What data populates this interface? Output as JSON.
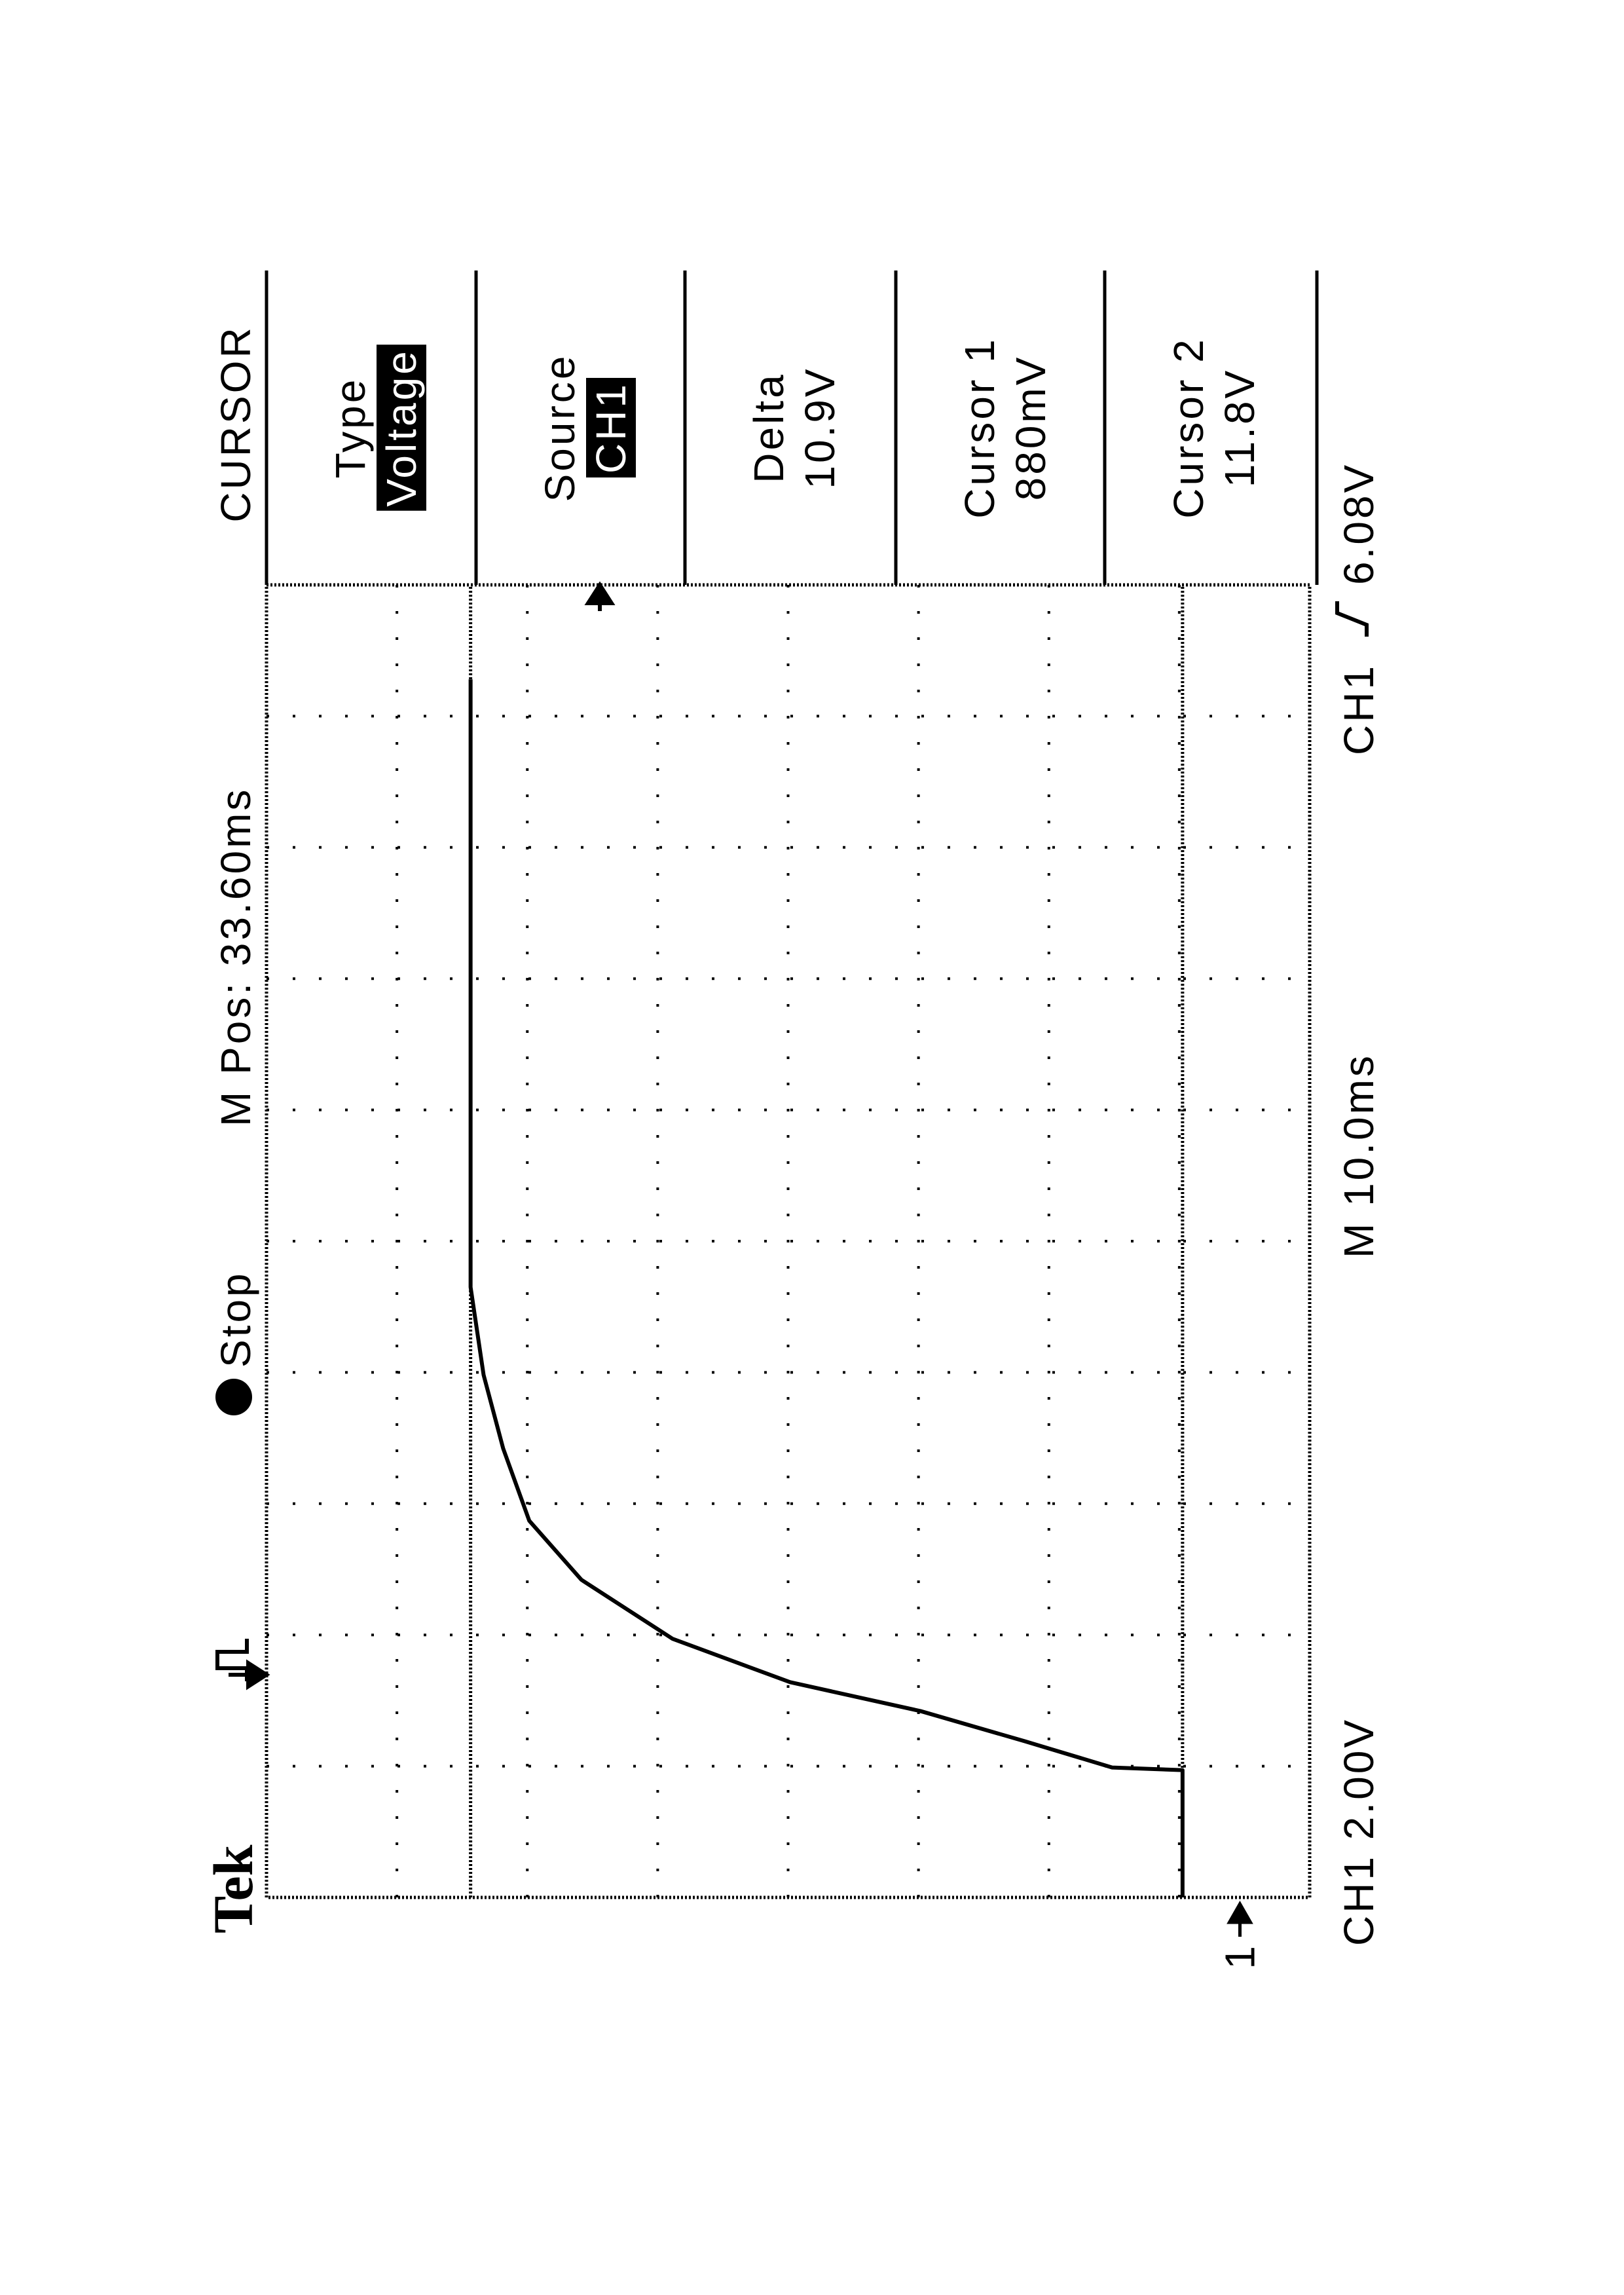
{
  "header": {
    "brand": "Tek",
    "status": "Stop",
    "position": "M Pos: 33.60ms"
  },
  "menu": {
    "title": "CURSOR",
    "items": [
      {
        "label": "Type",
        "value": "Voltage",
        "highlight": true
      },
      {
        "label": "Source",
        "value": "CH1",
        "highlight": true
      },
      {
        "label": "Delta",
        "value": "10.9V",
        "highlight": false
      },
      {
        "label": "Cursor 1",
        "value": "880mV",
        "highlight": false
      },
      {
        "label": "Cursor 2",
        "value": "11.8V",
        "highlight": false
      }
    ]
  },
  "footer": {
    "channel": "CH1 2.00V",
    "timebase": "M 10.0ms",
    "trigger_source": "CH1",
    "trigger_level": "6.08V"
  },
  "ground_marker": "1",
  "chart_data": {
    "type": "line",
    "xlim": [
      0,
      100
    ],
    "ylim": [
      -1.07,
      14.93
    ],
    "x": [
      0,
      9.7,
      9.9,
      11.9,
      14.2,
      16.4,
      19.7,
      24.2,
      28.7,
      34.2,
      39.8,
      46.5,
      55.4,
      92.8
    ],
    "series": [
      {
        "color": "#000000",
        "values": [
          0.88,
          0.88,
          1.96,
          3.3,
          4.9,
          6.9,
          8.7,
          10.1,
          10.9,
          11.3,
          11.6,
          11.8,
          11.8,
          11.8
        ]
      }
    ],
    "cursor_lines": [
      0.88,
      11.8
    ],
    "grid": true
  }
}
